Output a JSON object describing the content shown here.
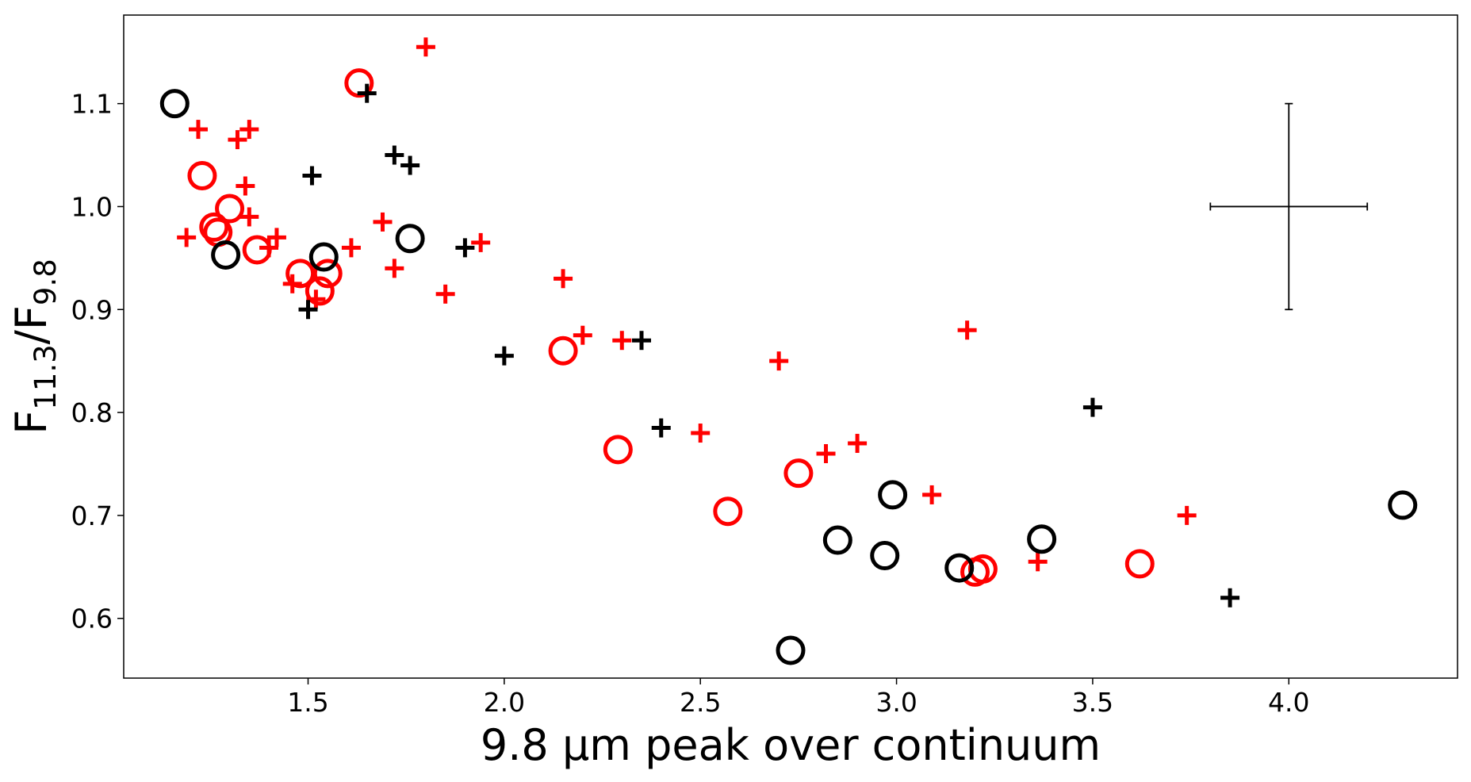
{
  "chart_data": {
    "type": "scatter",
    "xlabel": "9.8 μm peak over continuum",
    "ylabel": "F11.3/F9.8",
    "ylabel_parts": {
      "base": "F",
      "sub1": "11.3",
      "mid": "/F",
      "sub2": "9.8"
    },
    "xlim": [
      1.03,
      4.43
    ],
    "ylim": [
      0.542,
      1.186
    ],
    "x_ticks": [
      {
        "value": 1.5,
        "label": "1.5"
      },
      {
        "value": 2.0,
        "label": "2.0"
      },
      {
        "value": 2.5,
        "label": "2.5"
      },
      {
        "value": 3.0,
        "label": "3.0"
      },
      {
        "value": 3.5,
        "label": "3.5"
      },
      {
        "value": 4.0,
        "label": "4.0"
      }
    ],
    "y_ticks": [
      {
        "value": 0.6,
        "label": "0.6"
      },
      {
        "value": 0.7,
        "label": "0.7"
      },
      {
        "value": 0.8,
        "label": "0.8"
      },
      {
        "value": 0.9,
        "label": "0.9"
      },
      {
        "value": 1.0,
        "label": "1.0"
      },
      {
        "value": 1.1,
        "label": "1.1"
      }
    ],
    "grid": false,
    "series": [
      {
        "marker": "plus",
        "color": "#ff0000",
        "points": [
          [
            1.8,
            1.155
          ],
          [
            1.22,
            1.075
          ],
          [
            1.35,
            1.075
          ],
          [
            1.32,
            1.065
          ],
          [
            1.34,
            1.02
          ],
          [
            1.35,
            0.99
          ],
          [
            1.69,
            0.985
          ],
          [
            1.19,
            0.97
          ],
          [
            1.42,
            0.97
          ],
          [
            1.4,
            0.96
          ],
          [
            1.61,
            0.96
          ],
          [
            1.94,
            0.965
          ],
          [
            1.72,
            0.94
          ],
          [
            2.15,
            0.93
          ],
          [
            1.46,
            0.925
          ],
          [
            1.85,
            0.915
          ],
          [
            1.52,
            0.91
          ],
          [
            2.2,
            0.875
          ],
          [
            2.3,
            0.87
          ],
          [
            2.7,
            0.85
          ],
          [
            3.18,
            0.88
          ],
          [
            2.5,
            0.78
          ],
          [
            2.9,
            0.77
          ],
          [
            2.82,
            0.76
          ],
          [
            3.09,
            0.72
          ],
          [
            3.74,
            0.7
          ],
          [
            3.36,
            0.655
          ]
        ]
      },
      {
        "marker": "circle",
        "color": "#ff0000",
        "points": [
          [
            1.63,
            1.12
          ],
          [
            1.23,
            1.03
          ],
          [
            1.3,
            0.998
          ],
          [
            1.26,
            0.98
          ],
          [
            1.27,
            0.975
          ],
          [
            1.37,
            0.958
          ],
          [
            1.48,
            0.935
          ],
          [
            1.55,
            0.935
          ],
          [
            1.53,
            0.918
          ],
          [
            2.15,
            0.86
          ],
          [
            2.29,
            0.764
          ],
          [
            2.75,
            0.741
          ],
          [
            2.57,
            0.704
          ],
          [
            3.2,
            0.645
          ],
          [
            3.22,
            0.648
          ],
          [
            3.62,
            0.653
          ]
        ]
      },
      {
        "marker": "plus",
        "color": "#000000",
        "points": [
          [
            1.65,
            1.11
          ],
          [
            1.72,
            1.05
          ],
          [
            1.76,
            1.04
          ],
          [
            1.51,
            1.03
          ],
          [
            1.9,
            0.96
          ],
          [
            1.5,
            0.9
          ],
          [
            2.0,
            0.855
          ],
          [
            2.35,
            0.87
          ],
          [
            2.4,
            0.785
          ],
          [
            3.5,
            0.805
          ],
          [
            3.85,
            0.62
          ]
        ]
      },
      {
        "marker": "circle",
        "color": "#000000",
        "points": [
          [
            1.16,
            1.1
          ],
          [
            1.29,
            0.953
          ],
          [
            1.54,
            0.951
          ],
          [
            1.76,
            0.969
          ],
          [
            2.99,
            0.72
          ],
          [
            2.85,
            0.676
          ],
          [
            2.97,
            0.661
          ],
          [
            3.16,
            0.649
          ],
          [
            3.37,
            0.677
          ],
          [
            4.29,
            0.71
          ],
          [
            2.73,
            0.569
          ]
        ]
      }
    ],
    "error_bar_example": {
      "x": 4.0,
      "y": 1.0,
      "xerr": 0.2,
      "yerr": 0.1,
      "color": "#000000"
    }
  }
}
